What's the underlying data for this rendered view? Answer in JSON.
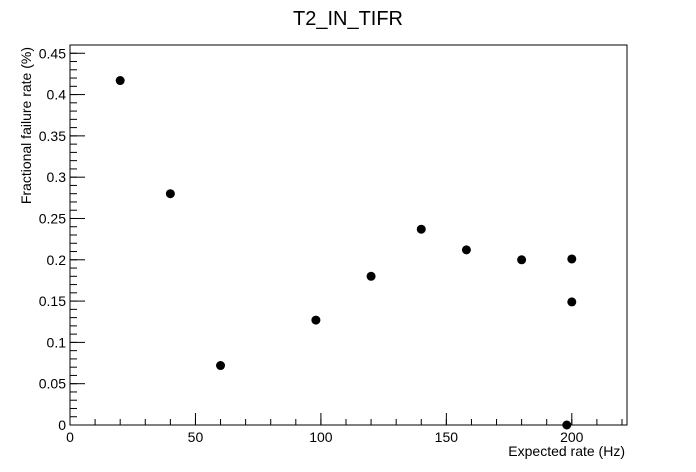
{
  "chart_data": {
    "type": "scatter",
    "title": "T2_IN_TIFR",
    "xlabel": "Expected rate (Hz)",
    "ylabel": "Fractional failure rate (%)",
    "xlim": [
      0,
      222
    ],
    "ylim": [
      0,
      0.46
    ],
    "x_ticks": [
      0,
      50,
      100,
      150,
      200
    ],
    "y_ticks": [
      0,
      0.05,
      0.1,
      0.15,
      0.2,
      0.25,
      0.3,
      0.35,
      0.4,
      0.45
    ],
    "x_tick_labels": [
      "0",
      "50",
      "100",
      "150",
      "200"
    ],
    "y_tick_labels": [
      "0",
      "0.05",
      "0.1",
      "0.15",
      "0.2",
      "0.25",
      "0.3",
      "0.35",
      "0.4",
      "0.45"
    ],
    "grid": false,
    "marker_color": "#000000",
    "series": [
      {
        "x": [
          20,
          40,
          60,
          98,
          120,
          140,
          158,
          180,
          200,
          200,
          198
        ],
        "y": [
          0.417,
          0.28,
          0.072,
          0.127,
          0.18,
          0.237,
          0.212,
          0.2,
          0.201,
          0.149,
          0.0
        ]
      }
    ]
  }
}
